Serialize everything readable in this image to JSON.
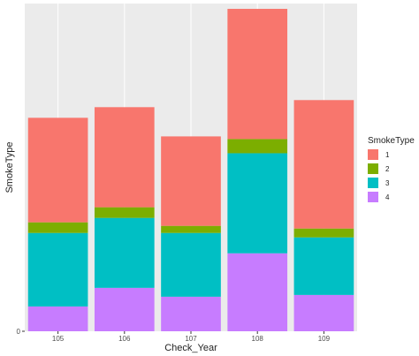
{
  "chart_data": {
    "type": "bar",
    "stacked": true,
    "xlabel": "Check_Year",
    "ylabel": "SmokeType",
    "categories": [
      "105",
      "106",
      "107",
      "108",
      "109"
    ],
    "series": [
      {
        "name": "1",
        "color": "#F8766D",
        "values": [
          118,
          113,
          101,
          147,
          145
        ]
      },
      {
        "name": "2",
        "color": "#7CAE00",
        "values": [
          12,
          12,
          8,
          16,
          10
        ]
      },
      {
        "name": "3",
        "color": "#00BFC4",
        "values": [
          83,
          79,
          72,
          113,
          65
        ]
      },
      {
        "name": "4",
        "color": "#C77CFF",
        "values": [
          28,
          49,
          39,
          88,
          41
        ]
      }
    ],
    "ylim": [
      0,
      370
    ],
    "y_tick_label": "0",
    "legend": {
      "title": "SmokeType",
      "position": "right"
    },
    "panel_background": "#EBEBEB",
    "grid": true
  }
}
